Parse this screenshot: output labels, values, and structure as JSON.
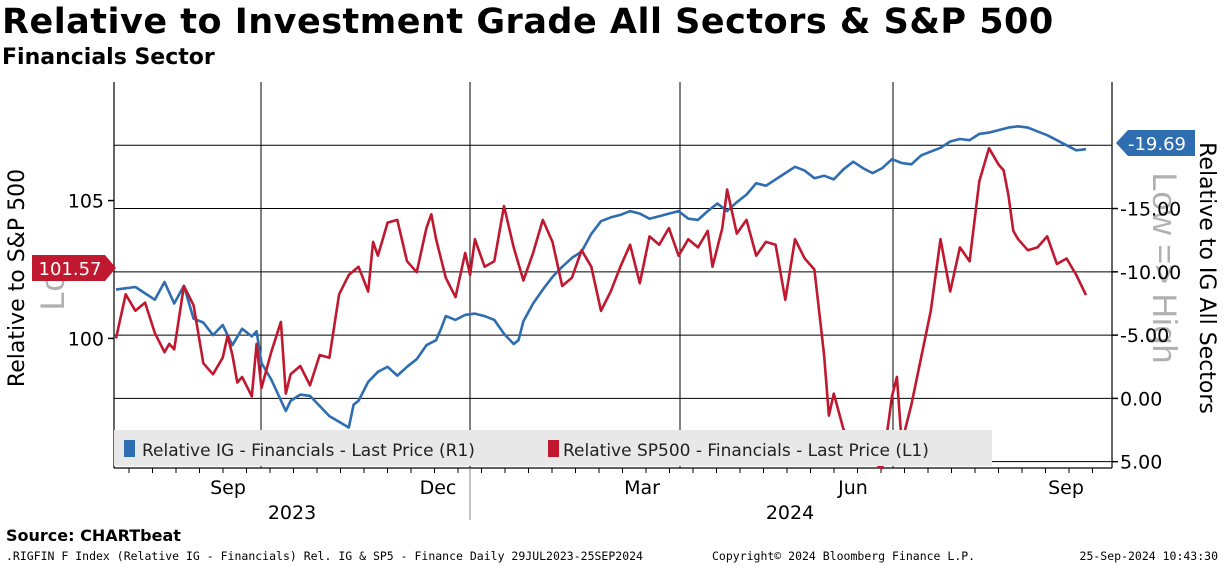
{
  "header": {
    "title": "Relative to Investment Grade All Sectors & S&P 500",
    "subtitle": "Financials Sector"
  },
  "footer": {
    "source": "Source: CHARTbeat",
    "index_info": ".RIGFIN F Index (Relative IG - Financials) Rel. IG & SP5 - Finance  Daily 29JUL2023-25SEP2024",
    "copyright": "Copyright© 2024 Bloomberg Finance L.P.",
    "timestamp": "25-Sep-2024 10:43:30"
  },
  "colors": {
    "ig_series": "#2e6db0",
    "sp500_series": "#c0182e",
    "grid": "#000000",
    "legend_bg": "#e8e8e8",
    "watermark": "#b0b0b0"
  },
  "chart_data": {
    "type": "line",
    "title": "Relative to Investment Grade All Sectors & S&P 500",
    "subtitle": "Financials Sector",
    "x_range": [
      "2023-07-29",
      "2024-09-25"
    ],
    "x_month_ticks": [
      "Sep",
      "Dec",
      "Mar",
      "Jun",
      "Sep"
    ],
    "x_year_labels": [
      "2023",
      "2024"
    ],
    "left_axis": {
      "label": "Relative to S&P 500",
      "ticks": [
        "105",
        "100"
      ],
      "ylim": [
        95.3,
        109.3
      ],
      "current_value_label": "101.57",
      "watermark": "Log"
    },
    "right_axis": {
      "label": "Relative to IG All Sectors",
      "ticks": [
        "-15.00",
        "-10.00",
        "-5.00",
        "0.00",
        "5.00"
      ],
      "ylim": [
        5.5,
        -25.0
      ],
      "inverted": true,
      "current_value_label": "-19.69",
      "watermark": "Low => High"
    },
    "legend": {
      "position": "bottom-left",
      "entries": [
        "Relative IG - Financials - Last Price (R1)",
        "Relative SP500 - Financials - Last Price (L1)"
      ]
    },
    "series": [
      {
        "name": "Relative IG - Financials - Last Price (R1)",
        "axis": "right",
        "color": "#2e6db0",
        "x": [
          0,
          0.02,
          0.04,
          0.05,
          0.06,
          0.07,
          0.08,
          0.09,
          0.1,
          0.11,
          0.12,
          0.13,
          0.14,
          0.145,
          0.15,
          0.16,
          0.175,
          0.18,
          0.19,
          0.2,
          0.21,
          0.215,
          0.22,
          0.24,
          0.245,
          0.25,
          0.26,
          0.27,
          0.28,
          0.29,
          0.3,
          0.31,
          0.32,
          0.33,
          0.335,
          0.34,
          0.35,
          0.36,
          0.37,
          0.38,
          0.39,
          0.4,
          0.41,
          0.415,
          0.42,
          0.43,
          0.44,
          0.45,
          0.46,
          0.47,
          0.48,
          0.49,
          0.5,
          0.51,
          0.52,
          0.53,
          0.54,
          0.55,
          0.56,
          0.57,
          0.58,
          0.59,
          0.6,
          0.61,
          0.62,
          0.63,
          0.64,
          0.65,
          0.66,
          0.67,
          0.68,
          0.69,
          0.7,
          0.71,
          0.72,
          0.73,
          0.74,
          0.75,
          0.76,
          0.77,
          0.78,
          0.79,
          0.8,
          0.81,
          0.82,
          0.83,
          0.84,
          0.85,
          0.86,
          0.87,
          0.88,
          0.89,
          0.9,
          0.91,
          0.92,
          0.93,
          0.94,
          0.95,
          0.96,
          0.97,
          0.98,
          0.99,
          1.0
        ],
        "values": [
          -8.6,
          -8.8,
          -7.8,
          -9.2,
          -7.5,
          -8.9,
          -6.3,
          -6.0,
          -5.0,
          -5.8,
          -4.2,
          -5.5,
          -4.9,
          -5.3,
          -2.8,
          -1.5,
          1.0,
          0.2,
          -0.3,
          -0.2,
          0.6,
          1.0,
          1.4,
          2.3,
          0.5,
          0.2,
          -1.3,
          -2.1,
          -2.5,
          -1.8,
          -2.5,
          -3.1,
          -4.2,
          -4.6,
          -5.5,
          -6.5,
          -6.2,
          -6.6,
          -6.7,
          -6.5,
          -6.2,
          -5.1,
          -4.3,
          -4.6,
          -6.1,
          -7.5,
          -8.6,
          -9.6,
          -10.4,
          -11.1,
          -11.6,
          -13.0,
          -14.0,
          -14.3,
          -14.5,
          -14.8,
          -14.6,
          -14.2,
          -14.4,
          -14.6,
          -14.8,
          -14.2,
          -14.1,
          -14.8,
          -15.4,
          -14.8,
          -15.5,
          -16.1,
          -17.0,
          -16.8,
          -17.3,
          -17.8,
          -18.3,
          -18.0,
          -17.4,
          -17.6,
          -17.3,
          -18.1,
          -18.7,
          -18.2,
          -17.8,
          -18.2,
          -18.9,
          -18.6,
          -18.5,
          -19.2,
          -19.5,
          -19.8,
          -20.3,
          -20.5,
          -20.4,
          -20.9,
          -21.0,
          -21.2,
          -21.4,
          -21.5,
          -21.4,
          -21.1,
          -20.8,
          -20.4,
          -20.0,
          -19.6,
          -19.69
        ]
      },
      {
        "name": "Relative SP500 - Financials - Last Price (L1)",
        "axis": "left",
        "color": "#c0182e",
        "x": [
          0,
          0.01,
          0.02,
          0.03,
          0.04,
          0.05,
          0.055,
          0.06,
          0.07,
          0.08,
          0.09,
          0.1,
          0.11,
          0.115,
          0.12,
          0.125,
          0.13,
          0.14,
          0.145,
          0.15,
          0.16,
          0.17,
          0.175,
          0.18,
          0.19,
          0.2,
          0.21,
          0.22,
          0.23,
          0.24,
          0.25,
          0.26,
          0.265,
          0.27,
          0.28,
          0.29,
          0.3,
          0.31,
          0.32,
          0.325,
          0.33,
          0.34,
          0.35,
          0.36,
          0.365,
          0.37,
          0.38,
          0.39,
          0.4,
          0.41,
          0.42,
          0.43,
          0.44,
          0.45,
          0.46,
          0.47,
          0.48,
          0.49,
          0.5,
          0.51,
          0.52,
          0.53,
          0.54,
          0.55,
          0.56,
          0.57,
          0.58,
          0.59,
          0.6,
          0.61,
          0.615,
          0.62,
          0.625,
          0.63,
          0.64,
          0.65,
          0.66,
          0.67,
          0.68,
          0.69,
          0.7,
          0.71,
          0.72,
          0.73,
          0.735,
          0.74,
          0.75,
          0.76,
          0.77,
          0.78,
          0.79,
          0.8,
          0.805,
          0.81,
          0.82,
          0.83,
          0.84,
          0.85,
          0.86,
          0.87,
          0.88,
          0.89,
          0.9,
          0.91,
          0.915,
          0.92,
          0.925,
          0.93,
          0.94,
          0.95,
          0.96,
          0.97,
          0.98,
          0.99,
          1.0
        ],
        "values": [
          100.0,
          101.6,
          101.0,
          101.3,
          100.2,
          99.5,
          99.8,
          99.6,
          101.9,
          101.2,
          99.1,
          98.7,
          99.3,
          100.1,
          99.4,
          98.4,
          98.6,
          97.9,
          99.8,
          98.2,
          99.5,
          100.6,
          98.0,
          98.7,
          99.0,
          98.3,
          99.4,
          99.3,
          101.6,
          102.3,
          102.6,
          101.7,
          103.5,
          103.0,
          104.2,
          104.3,
          102.8,
          102.4,
          104.0,
          104.5,
          103.6,
          102.2,
          101.5,
          103.1,
          102.3,
          103.6,
          102.6,
          102.8,
          104.8,
          103.3,
          102.1,
          103.1,
          104.3,
          103.5,
          101.9,
          102.2,
          103.2,
          102.6,
          101.0,
          101.7,
          102.6,
          103.4,
          102.0,
          103.7,
          103.4,
          104.0,
          103.0,
          103.6,
          103.3,
          103.9,
          102.6,
          103.3,
          104.0,
          105.4,
          103.8,
          104.3,
          103.0,
          103.5,
          103.4,
          101.4,
          103.6,
          102.9,
          102.5,
          99.4,
          97.2,
          98.0,
          96.7,
          96.3,
          95.7,
          95.5,
          95.3,
          97.9,
          98.6,
          96.2,
          97.6,
          99.3,
          101.0,
          103.6,
          101.7,
          103.3,
          102.8,
          105.7,
          106.9,
          106.3,
          106.1,
          105.2,
          103.9,
          103.6,
          103.2,
          103.3,
          103.7,
          102.7,
          102.9,
          102.3,
          101.57
        ]
      }
    ]
  }
}
